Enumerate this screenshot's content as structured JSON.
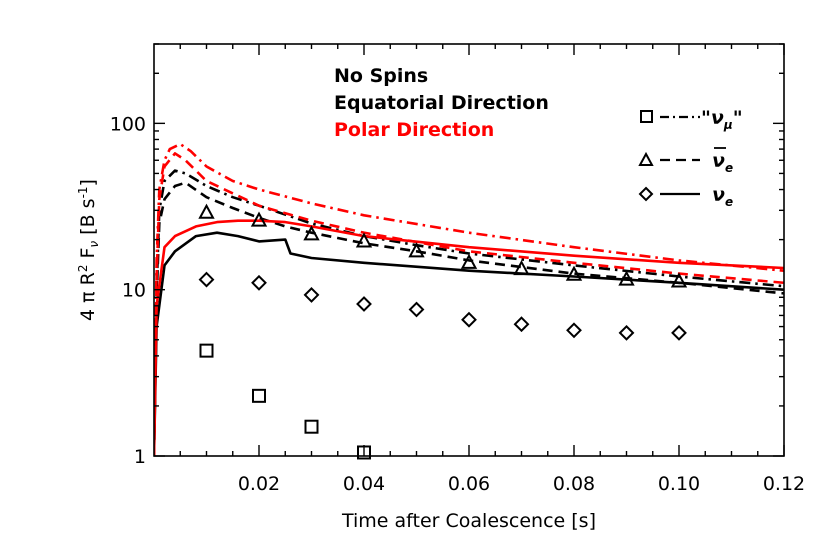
{
  "chart_data": {
    "type": "line",
    "xlabel": "Time after Coalescence [s]",
    "ylabel_parts": {
      "prefix": "4 π R",
      "sup_2": "2",
      "mid": " F",
      "sub_nu": "ν",
      "unit_open": " [B s",
      "sup_m1": "-1",
      "unit_close": "]"
    },
    "xlim": [
      0.0,
      0.12
    ],
    "ylim": [
      1,
      300
    ],
    "yscale": "log",
    "xticks": [
      0.02,
      0.04,
      0.06,
      0.08,
      0.1,
      0.12
    ],
    "xtick_labels": [
      "0.02",
      "0.04",
      "0.06",
      "0.08",
      "0.10",
      "0.12"
    ],
    "yticks": [
      1,
      10,
      100
    ],
    "ytick_labels": [
      "1",
      "10",
      "100"
    ],
    "annotations": {
      "title": "No Spins",
      "equatorial": "Equatorial Direction",
      "polar": "Polar Direction"
    },
    "colors": {
      "equatorial": "#000000",
      "polar": "#ff0000"
    },
    "legend": [
      {
        "key": "numu",
        "style": "dash-dot",
        "marker": "square",
        "label": "\"ν",
        "sub": "μ",
        "tail": "\""
      },
      {
        "key": "nuebar",
        "style": "dashed",
        "marker": "triangle",
        "label": "ν",
        "sub": "e",
        "bar": true
      },
      {
        "key": "nue",
        "style": "solid",
        "marker": "diamond",
        "label": "ν",
        "sub": "e"
      }
    ],
    "series": [
      {
        "name": "nu_mu equatorial",
        "direction": "equatorial",
        "style": "dash-dot",
        "x": [
          0.0,
          0.0005,
          0.001,
          0.002,
          0.004,
          0.006,
          0.01,
          0.015,
          0.02,
          0.03,
          0.04,
          0.05,
          0.06,
          0.08,
          0.1,
          0.12
        ],
        "y": [
          1.0,
          10,
          30,
          45,
          52,
          50,
          42,
          36,
          32,
          25,
          21,
          18.5,
          16.5,
          14,
          12,
          10.5
        ]
      },
      {
        "name": "nu_e_bar equatorial",
        "direction": "equatorial",
        "style": "dashed",
        "x": [
          0.0,
          0.0005,
          0.001,
          0.002,
          0.004,
          0.006,
          0.01,
          0.015,
          0.02,
          0.025,
          0.03,
          0.04,
          0.05,
          0.06,
          0.08,
          0.1,
          0.12
        ],
        "y": [
          1.0,
          9,
          25,
          35,
          42,
          44,
          36,
          31,
          27,
          24,
          22,
          19,
          17,
          15,
          12.5,
          11,
          9.5
        ]
      },
      {
        "name": "nu_e equatorial",
        "direction": "equatorial",
        "style": "solid",
        "x": [
          0.0,
          0.0005,
          0.002,
          0.004,
          0.008,
          0.012,
          0.016,
          0.02,
          0.025,
          0.026,
          0.03,
          0.04,
          0.06,
          0.08,
          0.1,
          0.12
        ],
        "y": [
          1.0,
          6,
          14,
          17,
          21,
          22,
          21,
          19.5,
          20,
          16.5,
          15.5,
          14.5,
          13,
          12,
          11,
          10
        ]
      },
      {
        "name": "nu_mu polar",
        "direction": "polar",
        "style": "dash-dot",
        "x": [
          0.0,
          0.0005,
          0.001,
          0.002,
          0.003,
          0.005,
          0.007,
          0.01,
          0.015,
          0.02,
          0.03,
          0.04,
          0.06,
          0.08,
          0.1,
          0.12
        ],
        "y": [
          1.0,
          15,
          40,
          60,
          70,
          75,
          68,
          55,
          45,
          40,
          33,
          28,
          22,
          18,
          15,
          13
        ]
      },
      {
        "name": "nu_e_bar polar",
        "direction": "polar",
        "style": "dashed",
        "x": [
          0.0,
          0.0005,
          0.001,
          0.002,
          0.004,
          0.006,
          0.01,
          0.02,
          0.03,
          0.04,
          0.06,
          0.08,
          0.1,
          0.12
        ],
        "y": [
          1.0,
          12,
          35,
          55,
          66,
          60,
          45,
          32,
          26,
          22,
          17,
          14.5,
          12.5,
          11
        ]
      },
      {
        "name": "nu_e polar",
        "direction": "polar",
        "style": "solid",
        "x": [
          0.0,
          0.0005,
          0.002,
          0.004,
          0.008,
          0.012,
          0.016,
          0.02,
          0.025,
          0.03,
          0.04,
          0.06,
          0.08,
          0.1,
          0.12
        ],
        "y": [
          1.0,
          8,
          18,
          21,
          24,
          25.5,
          26,
          26,
          25.5,
          24,
          21,
          18,
          16,
          14.5,
          13.5
        ]
      }
    ],
    "markers": [
      {
        "name": "nu_mu points",
        "marker": "square",
        "x": [
          0.01,
          0.02,
          0.03,
          0.04
        ],
        "y": [
          4.3,
          2.3,
          1.5,
          1.05
        ]
      },
      {
        "name": "nu_e_bar points",
        "marker": "triangle",
        "x": [
          0.01,
          0.02,
          0.03,
          0.04,
          0.05,
          0.06,
          0.07,
          0.08,
          0.09,
          0.1
        ],
        "y": [
          29,
          26,
          21.5,
          19.5,
          17,
          14.5,
          13.3,
          12.3,
          11.5,
          11.2
        ]
      },
      {
        "name": "nu_e points",
        "marker": "diamond",
        "x": [
          0.01,
          0.02,
          0.03,
          0.04,
          0.05,
          0.06,
          0.07,
          0.08,
          0.09,
          0.1
        ],
        "y": [
          11.5,
          11,
          9.3,
          8.2,
          7.6,
          6.6,
          6.2,
          5.7,
          5.5,
          5.5
        ]
      }
    ]
  }
}
